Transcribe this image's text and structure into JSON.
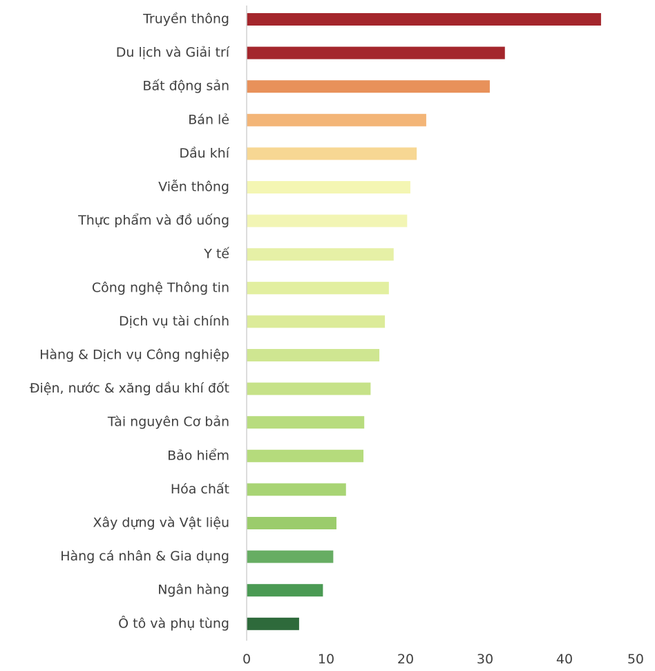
{
  "chart_data": {
    "type": "bar",
    "orientation": "horizontal",
    "title": "",
    "xlabel": "",
    "ylabel": "",
    "xlim": [
      0,
      50
    ],
    "ticks": [
      "0",
      "10",
      "20",
      "30",
      "40",
      "50"
    ],
    "grid": false,
    "legend": "none",
    "categories": [
      "Truyền thông",
      "Du lịch và Giải trí",
      "Bất động sản",
      "Bán lẻ",
      "Dầu khí",
      "Viễn thông",
      "Thực phẩm và đồ uống",
      "Y tế",
      "Công nghệ Thông tin",
      "Dịch vụ tài chính",
      "Hàng & Dịch vụ Công nghiệp",
      "Điện, nước & xăng dầu khí đốt",
      "Tài nguyên Cơ bản",
      "Bảo hiểm",
      "Hóa chất",
      "Xây dựng và Vật liệu",
      "Hàng cá nhân & Gia dụng",
      "Ngân hàng",
      "Ô tô và phụ tùng"
    ],
    "values": [
      44.6,
      32.5,
      30.6,
      22.6,
      21.4,
      20.6,
      20.2,
      18.5,
      17.9,
      17.4,
      16.7,
      15.6,
      14.8,
      14.7,
      12.5,
      11.3,
      10.9,
      9.6,
      6.6
    ],
    "colors": [
      "#a4262c",
      "#a4262c",
      "#e8915a",
      "#f3b577",
      "#f7d793",
      "#f4f6b3",
      "#f2f5b4",
      "#e6f0a6",
      "#e2efa0",
      "#dceb99",
      "#cfe691",
      "#c6e288",
      "#b8dc7e",
      "#b5db7c",
      "#a8d474",
      "#9bcc6c",
      "#67ad63",
      "#4a9a53",
      "#2e6a3b"
    ]
  }
}
